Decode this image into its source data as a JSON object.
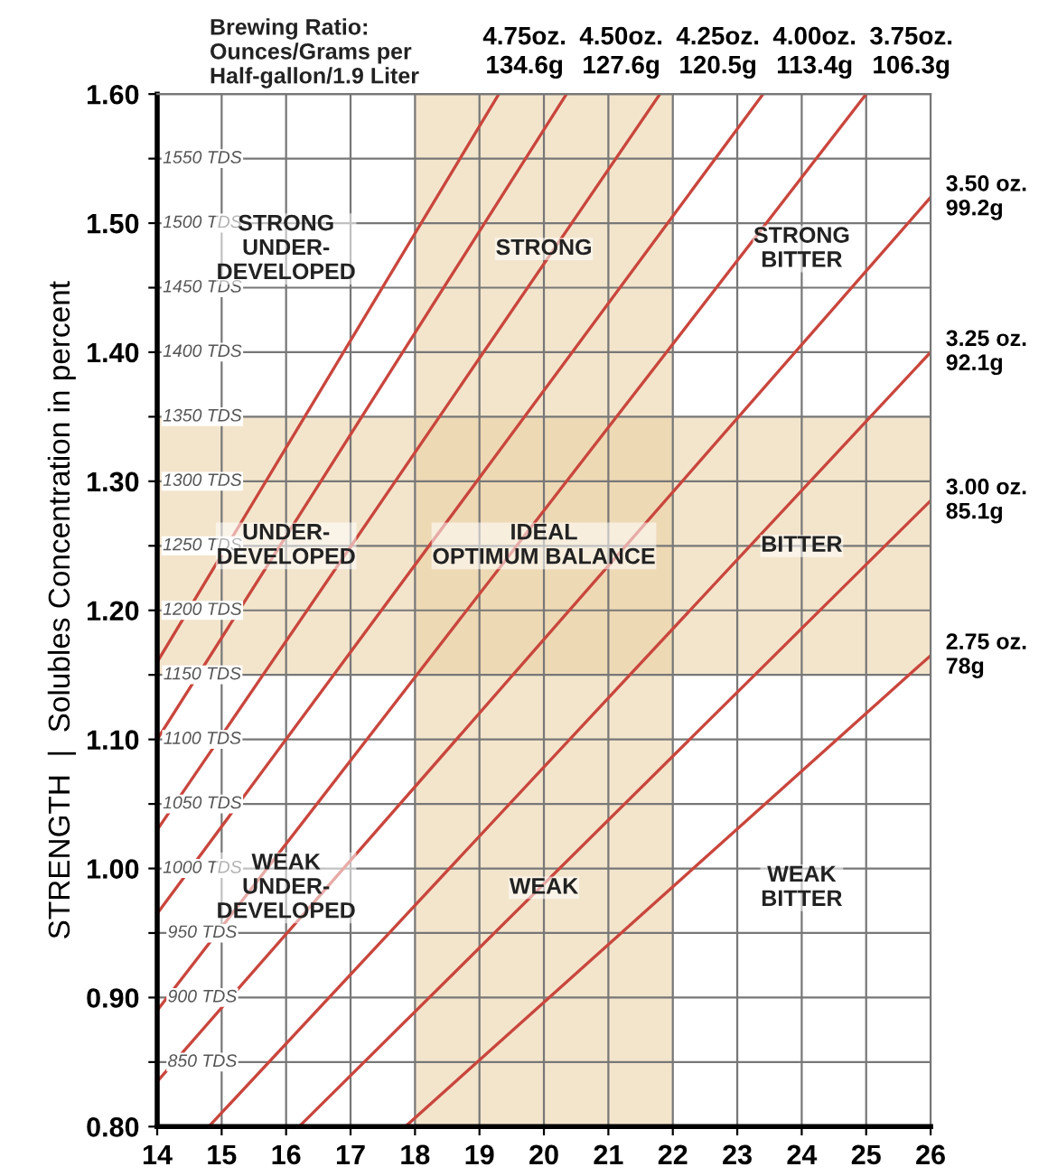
{
  "chart_data": {
    "type": "line",
    "ylabel": "STRENGTH  |  Solubles Concentration in percent",
    "xlim": [
      14,
      26
    ],
    "xticks": [
      14,
      15,
      16,
      17,
      18,
      19,
      20,
      21,
      22,
      23,
      24,
      25,
      26
    ],
    "ylim": [
      0.8,
      1.6
    ],
    "yticks": [
      {
        "value": 0.8,
        "label": "0.80"
      },
      {
        "value": 0.85,
        "label": null
      },
      {
        "value": 0.9,
        "label": "0.90"
      },
      {
        "value": 0.95,
        "label": null
      },
      {
        "value": 1.0,
        "label": "1.00"
      },
      {
        "value": 1.05,
        "label": null
      },
      {
        "value": 1.1,
        "label": "1.10"
      },
      {
        "value": 1.15,
        "label": null
      },
      {
        "value": 1.2,
        "label": "1.20"
      },
      {
        "value": 1.25,
        "label": null
      },
      {
        "value": 1.3,
        "label": "1.30"
      },
      {
        "value": 1.35,
        "label": null
      },
      {
        "value": 1.4,
        "label": "1.40"
      },
      {
        "value": 1.45,
        "label": null
      },
      {
        "value": 1.5,
        "label": "1.50"
      },
      {
        "value": 1.55,
        "label": null
      },
      {
        "value": 1.6,
        "label": "1.60"
      }
    ],
    "grid": true,
    "legend": false,
    "marker": "none",
    "line_style": "solid",
    "series": [
      {
        "name": "4.75oz.\n134.6g",
        "color": "#c9463d",
        "x": [
          14,
          19.3
        ],
        "values": [
          1.16,
          1.6
        ]
      },
      {
        "name": "4.50oz.\n127.6g",
        "color": "#c9463d",
        "x": [
          14,
          20.35
        ],
        "values": [
          1.1,
          1.6
        ]
      },
      {
        "name": "4.25oz.\n120.5g",
        "color": "#c9463d",
        "x": [
          14,
          21.8
        ],
        "values": [
          1.03,
          1.6
        ]
      },
      {
        "name": "4.00oz.\n113.4g",
        "color": "#c9463d",
        "x": [
          14,
          23.4
        ],
        "values": [
          0.965,
          1.6
        ]
      },
      {
        "name": "3.75oz.\n106.3g",
        "color": "#c9463d",
        "x": [
          14,
          25.0
        ],
        "values": [
          0.89,
          1.6
        ]
      },
      {
        "name": "3.50 oz.\n99.2g",
        "color": "#c9463d",
        "x": [
          14,
          26
        ],
        "values": [
          0.835,
          1.52
        ]
      },
      {
        "name": "3.25 oz.\n92.1g",
        "color": "#c9463d",
        "x": [
          14.8,
          26
        ],
        "values": [
          0.8,
          1.4
        ]
      },
      {
        "name": "3.00 oz.\n85.1g",
        "color": "#c9463d",
        "x": [
          16.2,
          26
        ],
        "values": [
          0.8,
          1.285
        ]
      },
      {
        "name": "2.75 oz.\n78g",
        "color": "#c9463d",
        "x": [
          17.85,
          26
        ],
        "values": [
          0.8,
          1.165
        ]
      }
    ],
    "bands": [
      {
        "axis": "x",
        "from": 18,
        "to": 22,
        "color": "#e9cfa3"
      },
      {
        "axis": "y",
        "from": 1.15,
        "to": 1.35,
        "color": "#e9cfa3"
      }
    ],
    "annotations": [
      "Brewing Ratio:\nOunces/Grams per\nHalf-gallon/1.9 Liter",
      "STRONG\nUNDER-\nDEVELOPED",
      "STRONG",
      "STRONG\nBITTER",
      "UNDER-\nDEVELOPED",
      "IDEAL\nOPTIMUM BALANCE",
      "BITTER",
      "WEAK\nUNDER-\nDEVELOPED",
      "WEAK",
      "WEAK\nBITTER",
      "1550 TDS",
      "1500 TDS",
      "1450 TDS",
      "1400 TDS",
      "1350 TDS",
      "1300 TDS",
      "1250 TDS",
      "1200 TDS",
      "1150 TDS",
      "1100 TDS",
      "1050 TDS",
      "1000 TDS",
      "950 TDS",
      "900 TDS",
      "850 TDS"
    ]
  }
}
